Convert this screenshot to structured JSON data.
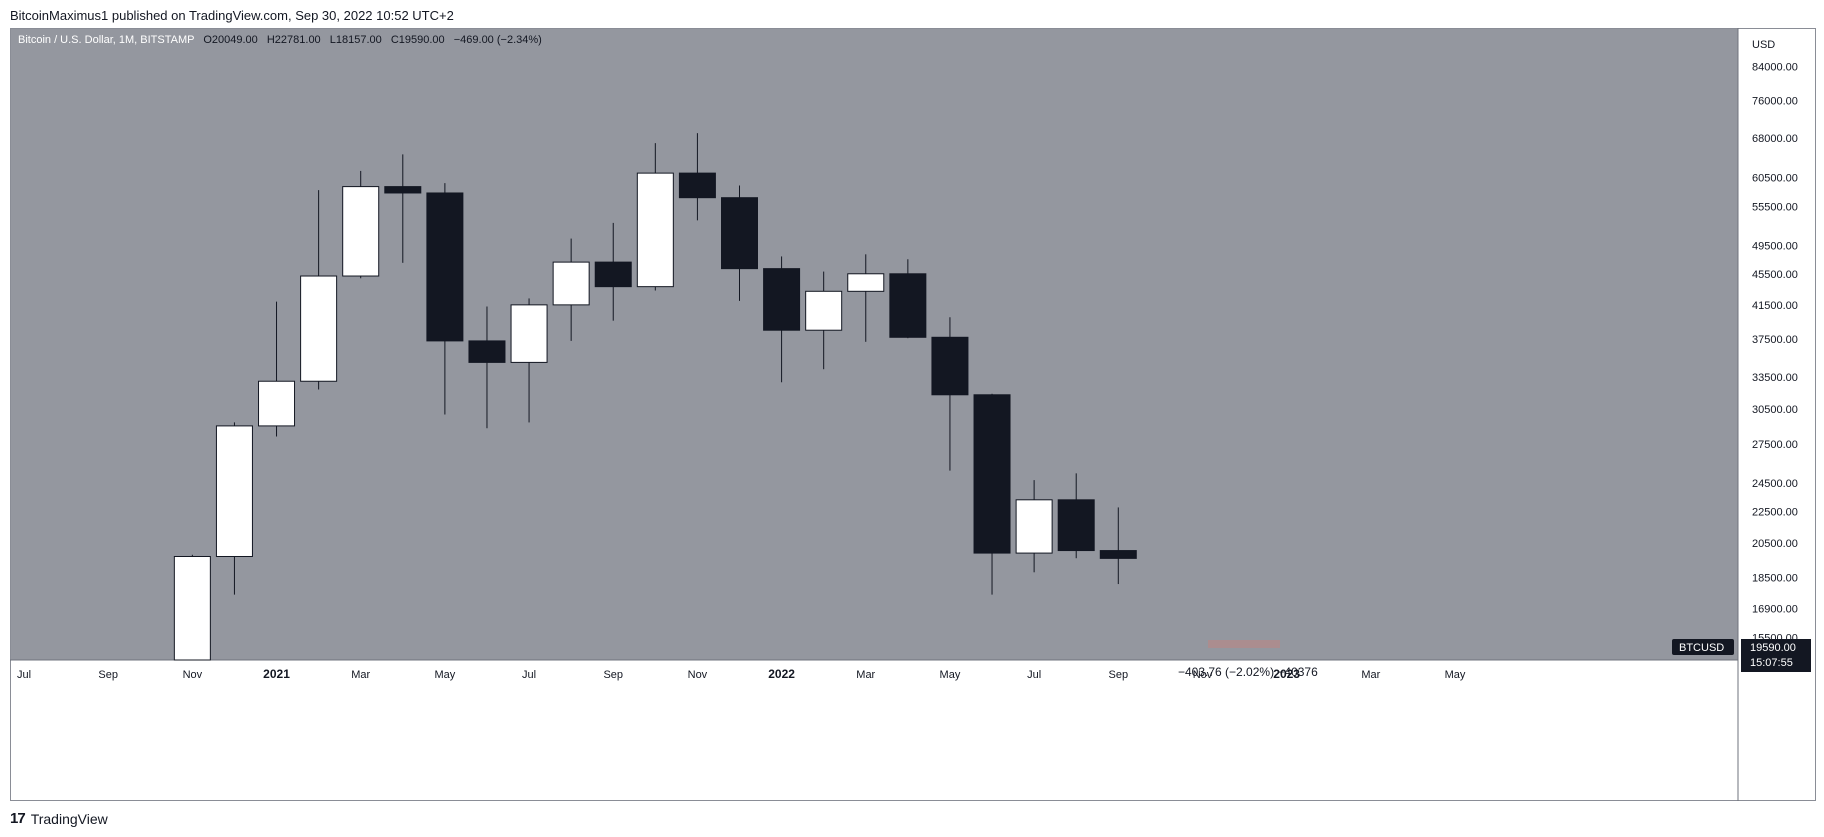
{
  "publish_line": "BitcoinMaximus1 published on TradingView.com, Sep 30, 2022 10:52 UTC+2",
  "brand": "TradingView",
  "brand_logo_icon": "tradingview-logo-icon",
  "colors": {
    "background": "#94979f",
    "up_body": "#ffffff",
    "down_body": "#131722",
    "wick": "#131722",
    "price_tag": "#131722"
  },
  "legend": {
    "symbol": "Bitcoin / U.S. Dollar, 1M, BITSTAMP",
    "o_label": "O",
    "o_value": "20049.00",
    "h_label": "H",
    "h_value": "22781.00",
    "l_label": "L",
    "l_value": "18157.00",
    "c_label": "C",
    "c_value": "19590.00",
    "change": "−469.00 (−2.34%)"
  },
  "axis_currency": "USD",
  "price_tag": {
    "symbol": "BTCUSD",
    "price": "19590.00",
    "countdown": "15:07:55"
  },
  "measure": {
    "value": "−403.76 (−2.02%) −40376"
  },
  "chart_data": {
    "type": "candlestick",
    "y_scale": "log",
    "ylim": [
      14500,
      92000
    ],
    "y_ticks": [
      {
        "value": 84000,
        "label": "84000.00"
      },
      {
        "value": 76000,
        "label": "76000.00"
      },
      {
        "value": 68000,
        "label": "68000.00"
      },
      {
        "value": 60500,
        "label": "60500.00"
      },
      {
        "value": 55500,
        "label": "55500.00"
      },
      {
        "value": 49500,
        "label": "49500.00"
      },
      {
        "value": 45500,
        "label": "45500.00"
      },
      {
        "value": 41500,
        "label": "41500.00"
      },
      {
        "value": 37500,
        "label": "37500.00"
      },
      {
        "value": 33500,
        "label": "33500.00"
      },
      {
        "value": 30500,
        "label": "30500.00"
      },
      {
        "value": 27500,
        "label": "27500.00"
      },
      {
        "value": 24500,
        "label": "24500.00"
      },
      {
        "value": 22500,
        "label": "22500.00"
      },
      {
        "value": 20500,
        "label": "20500.00"
      },
      {
        "value": 18500,
        "label": "18500.00"
      },
      {
        "value": 16900,
        "label": "16900.00"
      },
      {
        "value": 15500,
        "label": "15500.00"
      }
    ],
    "x_range": [
      "2020-07",
      "2023-05"
    ],
    "x_ticks": [
      {
        "date": "2020-07",
        "label": "Jul",
        "bold": false
      },
      {
        "date": "2020-09",
        "label": "Sep",
        "bold": false
      },
      {
        "date": "2020-11",
        "label": "Nov",
        "bold": false
      },
      {
        "date": "2021-01",
        "label": "2021",
        "bold": true
      },
      {
        "date": "2021-03",
        "label": "Mar",
        "bold": false
      },
      {
        "date": "2021-05",
        "label": "May",
        "bold": false
      },
      {
        "date": "2021-07",
        "label": "Jul",
        "bold": false
      },
      {
        "date": "2021-09",
        "label": "Sep",
        "bold": false
      },
      {
        "date": "2021-11",
        "label": "Nov",
        "bold": false
      },
      {
        "date": "2022-01",
        "label": "2022",
        "bold": true
      },
      {
        "date": "2022-03",
        "label": "Mar",
        "bold": false
      },
      {
        "date": "2022-05",
        "label": "May",
        "bold": false
      },
      {
        "date": "2022-07",
        "label": "Jul",
        "bold": false
      },
      {
        "date": "2022-09",
        "label": "Sep",
        "bold": false
      },
      {
        "date": "2022-11",
        "label": "Nov",
        "bold": false
      },
      {
        "date": "2023-01",
        "label": "2023",
        "bold": true
      },
      {
        "date": "2023-03",
        "label": "Mar",
        "bold": false
      },
      {
        "date": "2023-05",
        "label": "May",
        "bold": false
      }
    ],
    "candles": [
      {
        "date": "2020-11",
        "open": 13800,
        "high": 19800,
        "low": 13200,
        "close": 19700
      },
      {
        "date": "2020-12",
        "open": 19700,
        "high": 29300,
        "low": 17600,
        "close": 29000
      },
      {
        "date": "2021-01",
        "open": 29000,
        "high": 41900,
        "low": 28100,
        "close": 33100
      },
      {
        "date": "2021-02",
        "open": 33100,
        "high": 58300,
        "low": 32300,
        "close": 45200
      },
      {
        "date": "2021-03",
        "open": 45200,
        "high": 61700,
        "low": 44900,
        "close": 58900
      },
      {
        "date": "2021-04",
        "open": 58900,
        "high": 64800,
        "low": 47000,
        "close": 57800
      },
      {
        "date": "2021-05",
        "open": 57800,
        "high": 59500,
        "low": 30000,
        "close": 37300
      },
      {
        "date": "2021-06",
        "open": 37300,
        "high": 41300,
        "low": 28800,
        "close": 35000
      },
      {
        "date": "2021-07",
        "open": 35000,
        "high": 42300,
        "low": 29300,
        "close": 41500
      },
      {
        "date": "2021-08",
        "open": 41500,
        "high": 50500,
        "low": 37300,
        "close": 47100
      },
      {
        "date": "2021-09",
        "open": 47100,
        "high": 52900,
        "low": 39600,
        "close": 43800
      },
      {
        "date": "2021-10",
        "open": 43800,
        "high": 67000,
        "low": 43300,
        "close": 61300
      },
      {
        "date": "2021-11",
        "open": 61300,
        "high": 69000,
        "low": 53300,
        "close": 57000
      },
      {
        "date": "2021-12",
        "open": 57000,
        "high": 59100,
        "low": 42000,
        "close": 46200
      },
      {
        "date": "2022-01",
        "open": 46200,
        "high": 47900,
        "low": 33000,
        "close": 38500
      },
      {
        "date": "2022-02",
        "open": 38500,
        "high": 45800,
        "low": 34300,
        "close": 43200
      },
      {
        "date": "2022-03",
        "open": 43200,
        "high": 48200,
        "low": 37200,
        "close": 45500
      },
      {
        "date": "2022-04",
        "open": 45500,
        "high": 47500,
        "low": 37600,
        "close": 37700
      },
      {
        "date": "2022-05",
        "open": 37700,
        "high": 40000,
        "low": 25400,
        "close": 31800
      },
      {
        "date": "2022-06",
        "open": 31800,
        "high": 31900,
        "low": 17600,
        "close": 19900
      },
      {
        "date": "2022-07",
        "open": 19900,
        "high": 24700,
        "low": 18800,
        "close": 23300
      },
      {
        "date": "2022-08",
        "open": 23300,
        "high": 25200,
        "low": 19600,
        "close": 20050
      },
      {
        "date": "2022-09",
        "open": 20049,
        "high": 22781,
        "low": 18157,
        "close": 19590
      }
    ],
    "last_price": 19590
  }
}
